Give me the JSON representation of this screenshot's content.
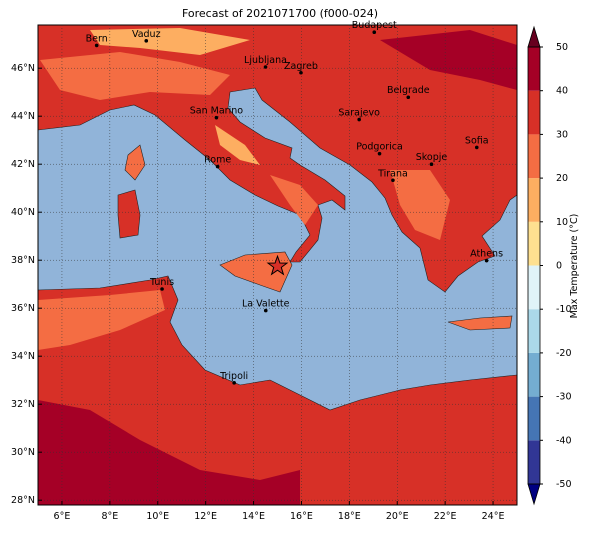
{
  "chart_data": {
    "type": "map",
    "title": "Forecast of 2021071700 (f000-024)",
    "xlim": [
      5,
      25
    ],
    "ylim": [
      27.8,
      47.8
    ],
    "xticks": [
      {
        "value": 6,
        "label": "6°E"
      },
      {
        "value": 8,
        "label": "8°E"
      },
      {
        "value": 10,
        "label": "10°E"
      },
      {
        "value": 12,
        "label": "12°E"
      },
      {
        "value": 14,
        "label": "14°E"
      },
      {
        "value": 16,
        "label": "16°E"
      },
      {
        "value": 18,
        "label": "18°E"
      },
      {
        "value": 20,
        "label": "20°E"
      },
      {
        "value": 22,
        "label": "22°E"
      },
      {
        "value": 24,
        "label": "24°E"
      }
    ],
    "yticks": [
      {
        "value": 28,
        "label": "28°N"
      },
      {
        "value": 30,
        "label": "30°N"
      },
      {
        "value": 32,
        "label": "32°N"
      },
      {
        "value": 34,
        "label": "34°N"
      },
      {
        "value": 36,
        "label": "36°N"
      },
      {
        "value": 38,
        "label": "38°N"
      },
      {
        "value": 40,
        "label": "40°N"
      },
      {
        "value": 42,
        "label": "42°N"
      },
      {
        "value": 44,
        "label": "44°N"
      },
      {
        "value": 46,
        "label": "46°N"
      }
    ],
    "grid": true,
    "cities": [
      {
        "name": "Bern",
        "lon": 7.45,
        "lat": 46.95
      },
      {
        "name": "Vaduz",
        "lon": 9.52,
        "lat": 47.14
      },
      {
        "name": "Budapest",
        "lon": 19.04,
        "lat": 47.5
      },
      {
        "name": "Ljubljana",
        "lon": 14.5,
        "lat": 46.05
      },
      {
        "name": "Zagreb",
        "lon": 15.98,
        "lat": 45.81
      },
      {
        "name": "San Marino",
        "lon": 12.45,
        "lat": 43.94
      },
      {
        "name": "Sarajevo",
        "lon": 18.41,
        "lat": 43.86
      },
      {
        "name": "Belgrade",
        "lon": 20.46,
        "lat": 44.79
      },
      {
        "name": "Rome",
        "lon": 12.5,
        "lat": 41.9
      },
      {
        "name": "Podgorica",
        "lon": 19.26,
        "lat": 42.44
      },
      {
        "name": "Skopje",
        "lon": 21.43,
        "lat": 42.0
      },
      {
        "name": "Sofia",
        "lon": 23.32,
        "lat": 42.7
      },
      {
        "name": "Tirana",
        "lon": 19.82,
        "lat": 41.33
      },
      {
        "name": "Athens",
        "lon": 23.73,
        "lat": 37.98
      },
      {
        "name": "Tunis",
        "lon": 10.18,
        "lat": 36.8
      },
      {
        "name": "La Valette",
        "lon": 14.51,
        "lat": 35.9
      },
      {
        "name": "Tripoli",
        "lon": 13.19,
        "lat": 32.89
      }
    ],
    "star": {
      "lon": 15.0,
      "lat": 37.75
    },
    "colorbar": {
      "label": "Max Temperature (°C)",
      "lim": [
        -50,
        50
      ],
      "ticks": [
        -50,
        -40,
        -30,
        -20,
        -10,
        0,
        10,
        20,
        30,
        40,
        50
      ],
      "colors": [
        "#313695",
        "#4575b4",
        "#74add1",
        "#abd9e9",
        "#e0f3f8",
        "#fee090",
        "#fdae61",
        "#f46d43",
        "#d73027",
        "#a50026"
      ]
    }
  }
}
